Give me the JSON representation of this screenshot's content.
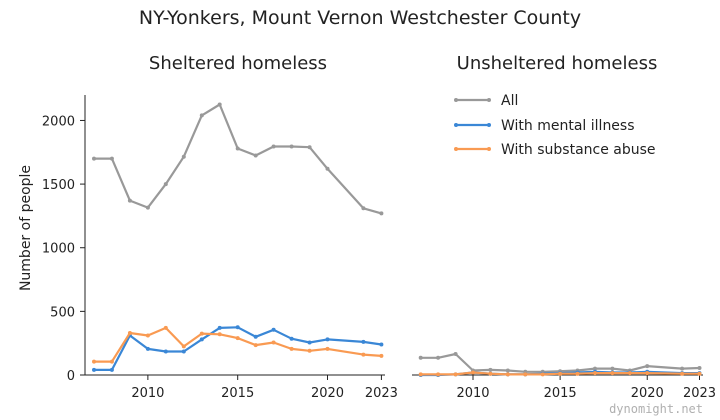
{
  "title": "NY-Yonkers, Mount Vernon Westchester County",
  "watermark": "dynomight.net",
  "ylabel": "Number of people",
  "legend": {
    "placement": "upper-right of right panel",
    "items": [
      "All",
      "With mental illness",
      "With substance abuse"
    ]
  },
  "colors": {
    "All": "#999999",
    "With mental illness": "#3a87d6",
    "With substance abuse": "#f99a52",
    "axis": "#222222"
  },
  "chart_data": [
    {
      "type": "line",
      "title": "Sheltered homeless",
      "xlabel": "",
      "ylabel": "Number of people",
      "xlim": [
        2006.5,
        2023.2
      ],
      "ylim": [
        0,
        2200
      ],
      "xticks": [
        2010,
        2015,
        2020,
        2023
      ],
      "yticks": [
        0,
        500,
        1000,
        1500,
        2000
      ],
      "grid": false,
      "x": [
        2007,
        2008,
        2009,
        2010,
        2011,
        2012,
        2013,
        2014,
        2015,
        2016,
        2017,
        2018,
        2019,
        2020,
        2022,
        2023
      ],
      "series": [
        {
          "name": "All",
          "values": [
            1700,
            1700,
            1370,
            1315,
            1500,
            1715,
            2040,
            2125,
            1780,
            1725,
            1795,
            1795,
            1790,
            1620,
            1310,
            1270
          ]
        },
        {
          "name": "With mental illness",
          "values": [
            40,
            40,
            310,
            205,
            185,
            185,
            280,
            370,
            375,
            300,
            355,
            285,
            255,
            280,
            260,
            240
          ]
        },
        {
          "name": "With substance abuse",
          "values": [
            105,
            105,
            330,
            310,
            370,
            225,
            325,
            320,
            290,
            235,
            255,
            205,
            190,
            205,
            160,
            150
          ]
        }
      ]
    },
    {
      "type": "line",
      "title": "Unsheltered homeless",
      "xlabel": "",
      "ylabel": "",
      "xlim": [
        2006.5,
        2023.2
      ],
      "ylim": [
        0,
        2200
      ],
      "xticks": [
        2010,
        2015,
        2020,
        2023
      ],
      "yticks": [],
      "grid": false,
      "x": [
        2007,
        2008,
        2009,
        2010,
        2011,
        2012,
        2013,
        2014,
        2015,
        2016,
        2017,
        2018,
        2019,
        2020,
        2022,
        2023
      ],
      "series": [
        {
          "name": "All",
          "values": [
            135,
            135,
            165,
            35,
            40,
            35,
            25,
            25,
            30,
            35,
            50,
            50,
            35,
            70,
            50,
            55
          ]
        },
        {
          "name": "With mental illness",
          "values": [
            0,
            0,
            5,
            20,
            10,
            5,
            5,
            10,
            15,
            20,
            25,
            20,
            20,
            25,
            15,
            15
          ]
        },
        {
          "name": "With substance abuse",
          "values": [
            5,
            5,
            5,
            20,
            10,
            5,
            5,
            5,
            10,
            10,
            15,
            15,
            15,
            15,
            10,
            10
          ]
        }
      ]
    }
  ]
}
